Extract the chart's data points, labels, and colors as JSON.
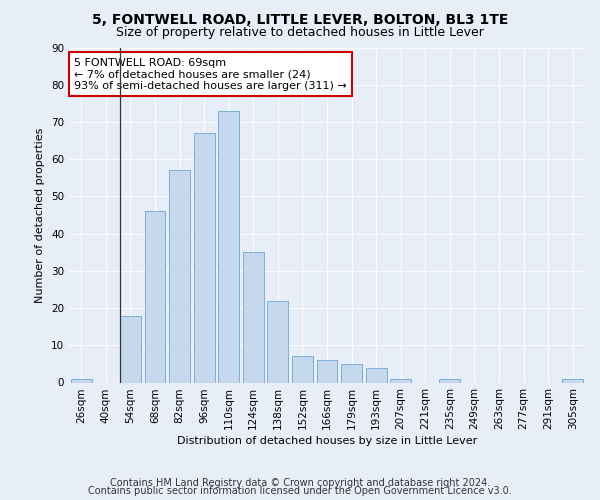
{
  "title": "5, FONTWELL ROAD, LITTLE LEVER, BOLTON, BL3 1TE",
  "subtitle": "Size of property relative to detached houses in Little Lever",
  "xlabel": "Distribution of detached houses by size in Little Lever",
  "ylabel": "Number of detached properties",
  "categories": [
    "26sqm",
    "40sqm",
    "54sqm",
    "68sqm",
    "82sqm",
    "96sqm",
    "110sqm",
    "124sqm",
    "138sqm",
    "152sqm",
    "166sqm",
    "179sqm",
    "193sqm",
    "207sqm",
    "221sqm",
    "235sqm",
    "249sqm",
    "263sqm",
    "277sqm",
    "291sqm",
    "305sqm"
  ],
  "values": [
    1,
    0,
    18,
    46,
    57,
    67,
    73,
    35,
    22,
    7,
    6,
    5,
    4,
    1,
    0,
    1,
    0,
    0,
    0,
    0,
    1
  ],
  "bar_color": "#c5d8ed",
  "bar_edge_color": "#7aafd4",
  "annotation_text": "5 FONTWELL ROAD: 69sqm\n← 7% of detached houses are smaller (24)\n93% of semi-detached houses are larger (311) →",
  "annotation_box_color": "#ffffff",
  "annotation_box_edge": "#cc0000",
  "vline_bin_index": 2,
  "ylim": [
    0,
    90
  ],
  "yticks": [
    0,
    10,
    20,
    30,
    40,
    50,
    60,
    70,
    80,
    90
  ],
  "bg_color": "#e8eef8",
  "grid_color": "#ffffff",
  "footer_line1": "Contains HM Land Registry data © Crown copyright and database right 2024.",
  "footer_line2": "Contains public sector information licensed under the Open Government Licence v3.0.",
  "title_fontsize": 10,
  "subtitle_fontsize": 9,
  "axis_label_fontsize": 8,
  "tick_fontsize": 7.5,
  "annotation_fontsize": 8,
  "footer_fontsize": 7
}
